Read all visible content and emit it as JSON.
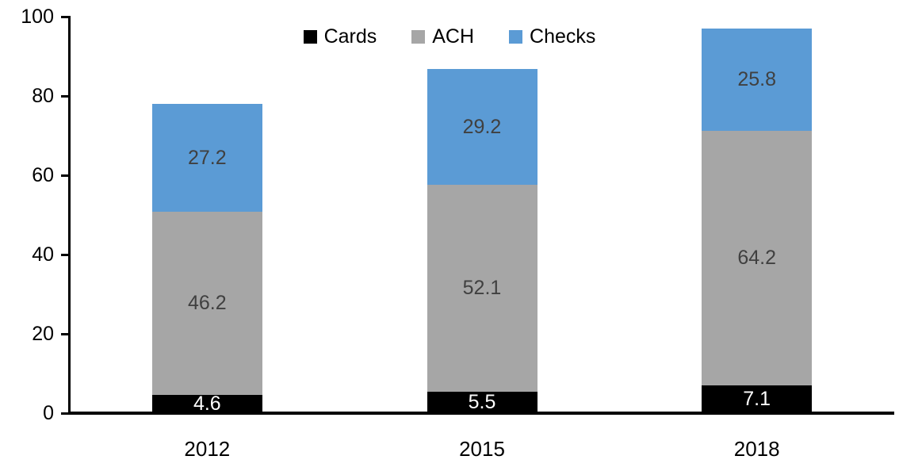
{
  "chart_data": {
    "type": "bar",
    "stacked": true,
    "title": "",
    "xlabel": "",
    "ylabel": "",
    "categories": [
      "2012",
      "2015",
      "2018"
    ],
    "series": [
      {
        "name": "Cards",
        "color": "#000000",
        "label_color": "#ffffff",
        "values": [
          4.6,
          5.5,
          7.1
        ]
      },
      {
        "name": "ACH",
        "color": "#a6a6a6",
        "label_color": "#404040",
        "values": [
          46.2,
          52.1,
          64.2
        ]
      },
      {
        "name": "Checks",
        "color": "#5b9bd5",
        "label_color": "#404040",
        "values": [
          27.2,
          29.2,
          25.8
        ]
      }
    ],
    "totals": [
      78.0,
      86.8,
      97.1
    ],
    "ylim": [
      0,
      100
    ],
    "yticks": [
      0,
      20,
      40,
      60,
      80,
      100
    ],
    "legend_position": "top-center",
    "grid": false,
    "axis_color": "#000000",
    "background_color": "#ffffff"
  }
}
